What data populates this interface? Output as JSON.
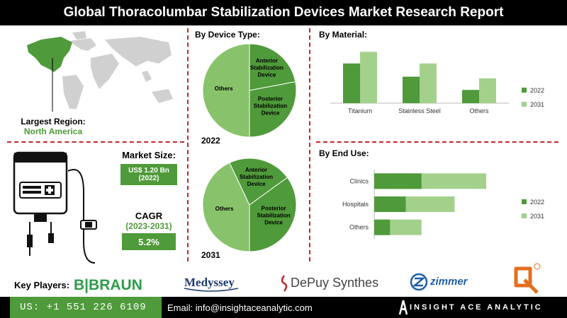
{
  "header": {
    "title": "Global Thoracolumbar Stabilization Devices Market Research Report"
  },
  "region": {
    "label": "Largest Region:",
    "value": "North America"
  },
  "market_size": {
    "label": "Market Size:",
    "value": "US$ 1.20 Bn",
    "year": "(2022)"
  },
  "cagr": {
    "label": "CAGR",
    "period": "(2023-2031)",
    "value": "5.2%"
  },
  "key_players_label": "Key Players:",
  "logos": [
    "B|BRAUN",
    "Medyssey",
    "DePuy Synthes",
    "zimmer"
  ],
  "contact": {
    "phone": "US: +1 551 226 6109",
    "email": "Email: info@insightaceanalytic.com",
    "brand": "INSIGHT ACE ANALYTIC"
  },
  "colors": {
    "dark_green": "#4f9a3a",
    "light_green": "#a3d18c",
    "pie_light": "#88c26a",
    "red": "#c0272d"
  },
  "chart_data": [
    {
      "type": "pie",
      "title": "By Device Type:",
      "year_label": "2022",
      "slices": [
        {
          "label": "Others",
          "value": 50
        },
        {
          "label": "Anterior Stabilization Device",
          "value": 22
        },
        {
          "label": "Posterior Stabilization Device",
          "value": 28
        }
      ]
    },
    {
      "type": "pie",
      "title": "",
      "year_label": "2031",
      "slices": [
        {
          "label": "Others",
          "value": 43
        },
        {
          "label": "Anterior Stabilization Device",
          "value": 22
        },
        {
          "label": "Posterior Stabilization Device",
          "value": 35
        }
      ]
    },
    {
      "type": "bar",
      "title": "By Material:",
      "categories": [
        "Titanium",
        "Stainless Steel",
        "Others"
      ],
      "series": [
        {
          "name": "2022",
          "values": [
            48,
            32,
            16
          ]
        },
        {
          "name": "2031",
          "values": [
            62,
            48,
            30
          ]
        }
      ],
      "ylim": [
        0,
        70
      ]
    },
    {
      "type": "bar",
      "title": "By End Use:",
      "orientation": "horizontal",
      "categories": [
        "Clinics",
        "Hospitals",
        "Others"
      ],
      "series": [
        {
          "name": "2022",
          "values": [
            60,
            40,
            20
          ]
        },
        {
          "name": "2031",
          "values": [
            142,
            102,
            60
          ]
        }
      ],
      "xlim": [
        0,
        160
      ]
    }
  ]
}
